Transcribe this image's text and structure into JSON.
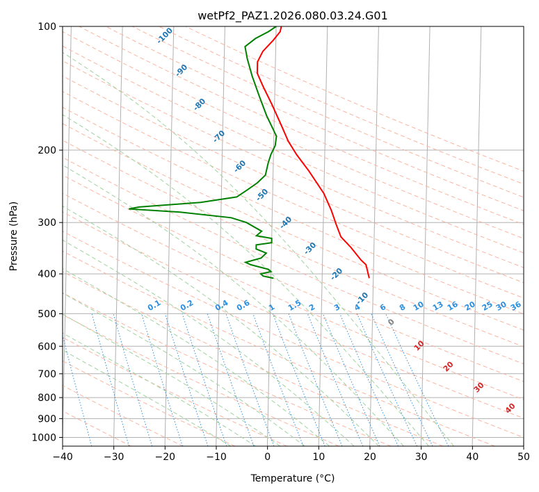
{
  "chart_data": {
    "type": "line",
    "title": "wetPf2_PAZ1.2026.080.03.24.G01",
    "xlabel": "Temperature (°C)",
    "ylabel": "Pressure (hPa)",
    "xlim": [
      -40,
      50
    ],
    "ylim": [
      1050,
      100
    ],
    "y_scale": "log",
    "x_ticks": [
      -40,
      -30,
      -20,
      -10,
      0,
      10,
      20,
      30,
      40,
      50
    ],
    "x_tick_labels": [
      "−40",
      "−30",
      "−20",
      "−10",
      "0",
      "10",
      "20",
      "30",
      "40",
      "50"
    ],
    "y_ticks": [
      100,
      200,
      300,
      400,
      500,
      600,
      700,
      800,
      900,
      1000
    ],
    "grid": true,
    "background_lines": {
      "isotherm_labels": [
        -100,
        -90,
        -80,
        -70,
        -60,
        -50,
        -40,
        -30,
        -20,
        -10
      ],
      "mixing_ratio_labels": [
        "0.1",
        "0.2",
        "0.4",
        "0.6",
        "1",
        "1.5",
        "2",
        "3",
        "4",
        "6",
        "8",
        "10",
        "13",
        "16",
        "20",
        "25",
        "30",
        "36"
      ],
      "isotherm_extra_labels": [
        "0",
        "10",
        "20",
        "30",
        "40"
      ]
    },
    "series": [
      {
        "color": "#ff0000",
        "points": [
          [
            19.2,
            410
          ],
          [
            18.5,
            380
          ],
          [
            17.5,
            370
          ],
          [
            15.5,
            345
          ],
          [
            13.5,
            325
          ],
          [
            12.6,
            305
          ],
          [
            11.5,
            280
          ],
          [
            10,
            255
          ],
          [
            7,
            225
          ],
          [
            4.5,
            205
          ],
          [
            2.8,
            190
          ],
          [
            1.5,
            175
          ],
          [
            -0.5,
            155
          ],
          [
            -2.3,
            140
          ],
          [
            -3.5,
            130
          ],
          [
            -3.5,
            122
          ],
          [
            -2.5,
            115
          ],
          [
            -0.5,
            108
          ],
          [
            0.8,
            103
          ],
          [
            1.0,
            100
          ]
        ]
      },
      {
        "color": "#008000",
        "points": [
          [
            0.5,
            410
          ],
          [
            -1.5,
            405
          ],
          [
            -2,
            400
          ],
          [
            0,
            395
          ],
          [
            -0.5,
            390
          ],
          [
            -4,
            380
          ],
          [
            -5,
            375
          ],
          [
            -2,
            366
          ],
          [
            -1,
            356
          ],
          [
            -3,
            348
          ],
          [
            -3,
            340
          ],
          [
            0,
            336
          ],
          [
            0,
            328
          ],
          [
            -3,
            323
          ],
          [
            -2,
            315
          ],
          [
            -5,
            300
          ],
          [
            -8,
            292
          ],
          [
            -18,
            283
          ],
          [
            -28,
            278
          ],
          [
            -26,
            275
          ],
          [
            -14,
            268
          ],
          [
            -7,
            260
          ],
          [
            -5,
            250
          ],
          [
            -3,
            240
          ],
          [
            -1.5,
            230
          ],
          [
            -1,
            215
          ],
          [
            -0.5,
            205
          ],
          [
            0.3,
            195
          ],
          [
            0.5,
            185
          ],
          [
            -1.5,
            165
          ],
          [
            -3,
            148
          ],
          [
            -4.5,
            132
          ],
          [
            -5.5,
            120
          ],
          [
            -6,
            112
          ],
          [
            -4,
            107
          ],
          [
            -1.5,
            103
          ],
          [
            0,
            100
          ]
        ]
      }
    ]
  }
}
